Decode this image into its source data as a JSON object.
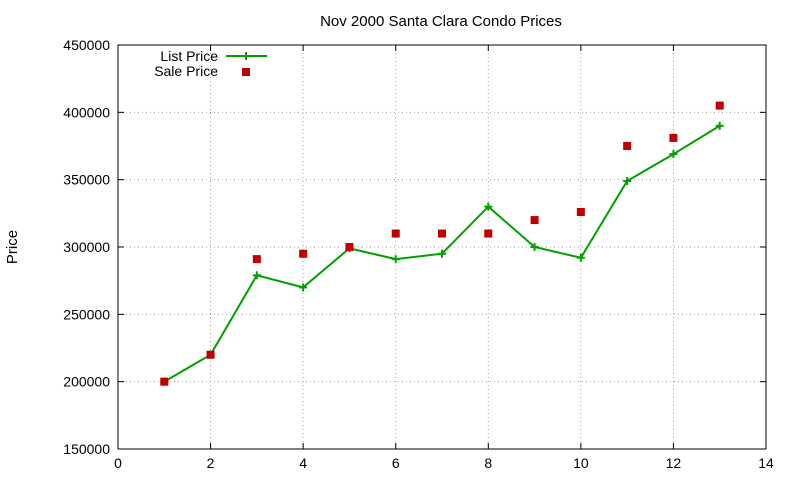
{
  "chart_data": {
    "type": "scatter",
    "title": "Nov 2000 Santa Clara Condo Prices",
    "xlabel": "",
    "ylabel": "Price",
    "xlim": [
      0,
      14
    ],
    "ylim": [
      150000,
      450000
    ],
    "xticks": [
      0,
      2,
      4,
      6,
      8,
      10,
      12,
      14
    ],
    "yticks": [
      150000,
      200000,
      250000,
      300000,
      350000,
      400000,
      450000
    ],
    "grid": true,
    "legend_position": "top-left",
    "series": [
      {
        "name": "List Price",
        "style": "linespoints",
        "marker": "plus",
        "color": "#00a000",
        "x": [
          1,
          2,
          3,
          4,
          5,
          6,
          7,
          8,
          9,
          10,
          11,
          12,
          13
        ],
        "y": [
          200000,
          220000,
          279000,
          270000,
          299000,
          291000,
          295000,
          330000,
          300000,
          292000,
          349000,
          369000,
          390000
        ]
      },
      {
        "name": "Sale Price",
        "style": "points",
        "marker": "square",
        "color": "#c00000",
        "x": [
          1,
          2,
          3,
          4,
          5,
          6,
          7,
          8,
          9,
          10,
          11,
          12,
          13
        ],
        "y": [
          200000,
          220000,
          291000,
          295000,
          300000,
          310000,
          310000,
          310000,
          320000,
          326000,
          375000,
          381000,
          405000
        ]
      }
    ]
  }
}
